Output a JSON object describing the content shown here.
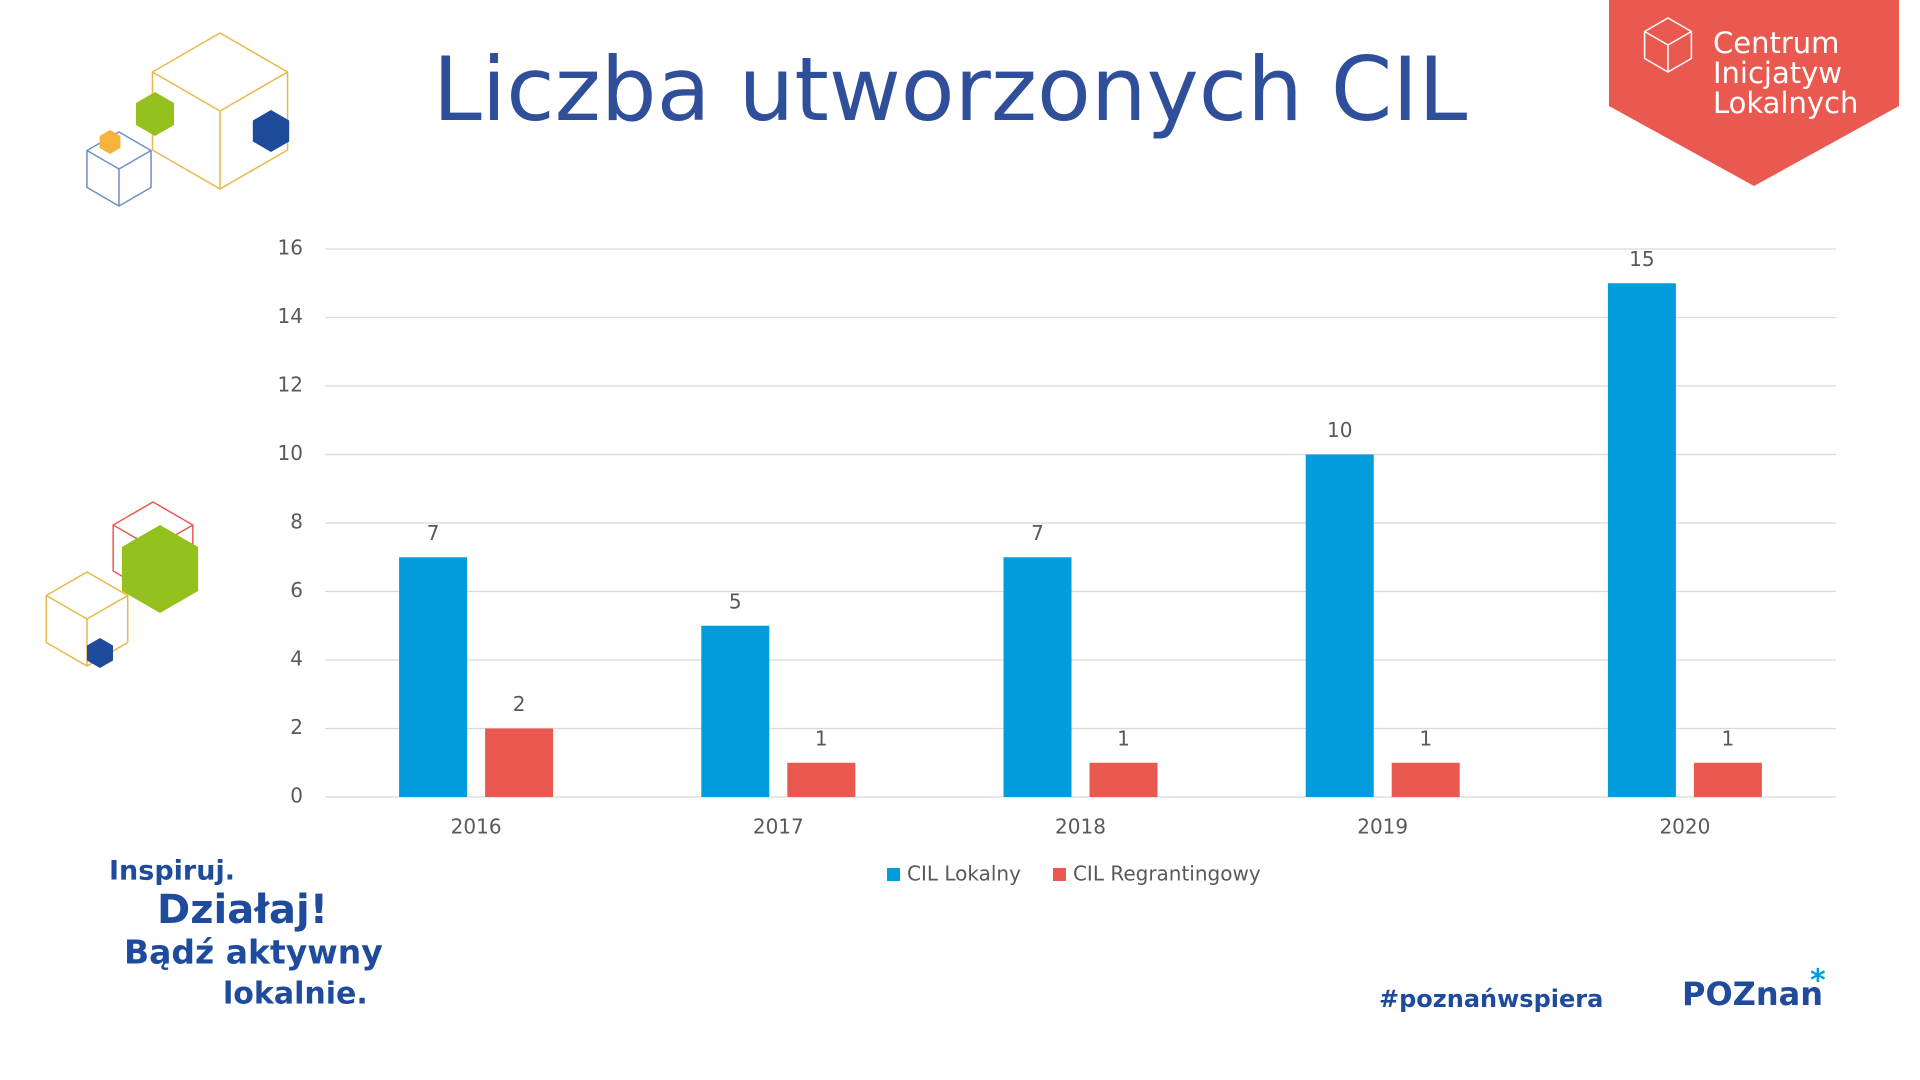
{
  "chart_data": {
    "type": "bar",
    "title": "Liczba utworzonych CIL",
    "categories": [
      "2016",
      "2017",
      "2018",
      "2019",
      "2020"
    ],
    "series": [
      {
        "name": "CIL Lokalny",
        "color": "#009cdc",
        "values": [
          7,
          5,
          7,
          10,
          15
        ]
      },
      {
        "name": "CIL Regrantingowy",
        "color": "#e95950",
        "values": [
          2,
          1,
          1,
          1,
          1
        ]
      }
    ],
    "ylim": [
      0,
      16
    ],
    "yticks": [
      0,
      2,
      4,
      6,
      8,
      10,
      12,
      14,
      16
    ],
    "grid": true,
    "legend": "bottom"
  },
  "logo": {
    "lines": [
      "Centrum",
      "Inicjatyw",
      "Lokalnych"
    ]
  },
  "slogan": {
    "lines": [
      "Inspiruj.",
      "Działaj!",
      "Bądź aktywny",
      "lokalnie."
    ]
  },
  "footer": {
    "hashtag": "#poznańwspiera",
    "brand": "POZnan"
  }
}
